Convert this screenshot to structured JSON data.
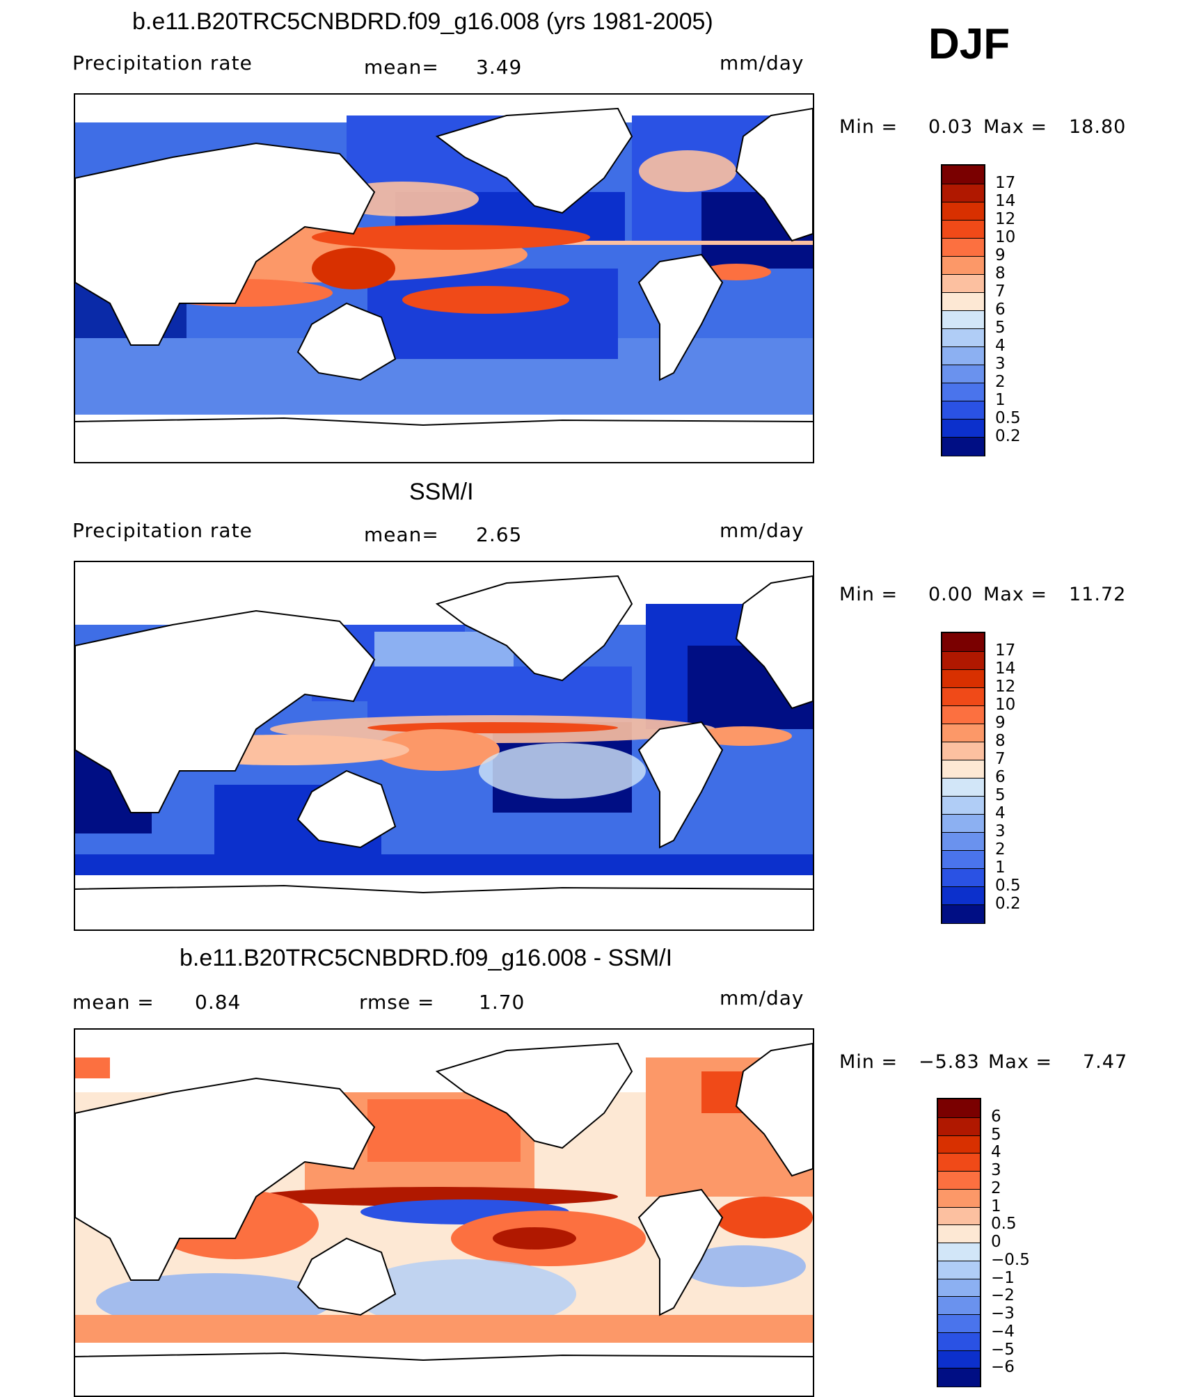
{
  "season": "DJF",
  "units": "mm/day",
  "panels": [
    {
      "title": "b.e11.B20TRC5CNBDRD.f09_g16.008 (yrs 1981-2005)",
      "left_label": "Precipitation  rate",
      "mean_label": "mean=",
      "mean_value": "3.49",
      "min_label": "Min  =",
      "min_value": "0.03",
      "max_label": "Max  =",
      "max_value": "18.80",
      "colorbar_labels": [
        "17",
        "14",
        "12",
        "10",
        "9",
        "8",
        "7",
        "6",
        "5",
        "4",
        "3",
        "2",
        "1",
        "0.5",
        "0.2"
      ]
    },
    {
      "title": "SSM/I",
      "left_label": "Precipitation  rate",
      "mean_label": "mean=",
      "mean_value": "2.65",
      "min_label": "Min  =",
      "min_value": "0.00",
      "max_label": "Max  =",
      "max_value": "11.72",
      "colorbar_labels": [
        "17",
        "14",
        "12",
        "10",
        "9",
        "8",
        "7",
        "6",
        "5",
        "4",
        "3",
        "2",
        "1",
        "0.5",
        "0.2"
      ]
    },
    {
      "title": "b.e11.B20TRC5CNBDRD.f09_g16.008 - SSM/I",
      "left_label": "mean  =",
      "left_value": "0.84",
      "rmse_label": "rmse  =",
      "rmse_value": "1.70",
      "min_label": "Min  =",
      "min_value": "−5.83",
      "max_label": "Max  =",
      "max_value": "7.47",
      "colorbar_labels": [
        "6",
        "5",
        "4",
        "3",
        "2",
        "1",
        "0.5",
        "0",
        "−0.5",
        "−1",
        "−2",
        "−3",
        "−4",
        "−5",
        "−6"
      ]
    }
  ],
  "colors": {
    "precip_scale": [
      "#7a0000",
      "#b01800",
      "#d83000",
      "#f04a18",
      "#fc7040",
      "#fc9868",
      "#fcc0a0",
      "#fde8d4",
      "#d2e6f8",
      "#b0cdf6",
      "#8cb0f2",
      "#6a92ee",
      "#4a74ec",
      "#2a52e4",
      "#0c30cc",
      "#000e84"
    ],
    "diff_scale": [
      "#7a0000",
      "#b01800",
      "#d83000",
      "#f04a18",
      "#fc7040",
      "#fc9868",
      "#fcc0a0",
      "#fde8d4",
      "#d2e6f8",
      "#b0cdf6",
      "#8cb0f2",
      "#6a92ee",
      "#4a74ec",
      "#2a52e4",
      "#0c30cc",
      "#000e84"
    ],
    "land": "#ffffff",
    "coast": "#000000"
  }
}
